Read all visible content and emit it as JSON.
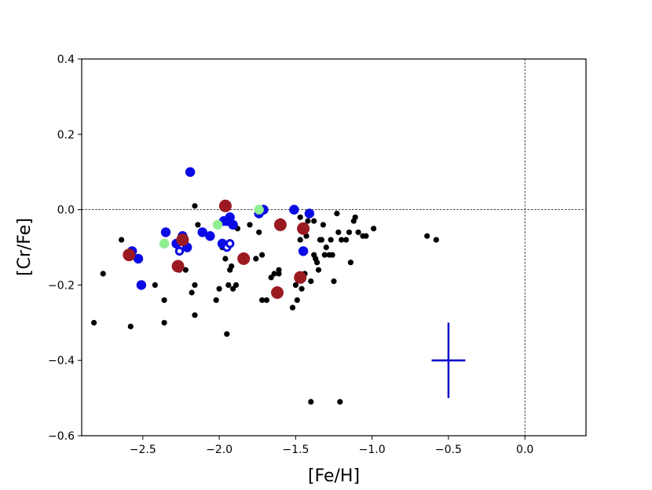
{
  "chart_data": {
    "type": "scatter",
    "xlabel": "[Fe/H]",
    "ylabel": "[Cr/Fe]",
    "xlim": [
      -2.9,
      0.4
    ],
    "ylim": [
      -0.6,
      0.4
    ],
    "x_ticks": [
      -2.5,
      -2.0,
      -1.5,
      -1.0,
      -0.5,
      0.0
    ],
    "x_tick_labels": [
      "−2.5",
      "−2.0",
      "−1.5",
      "−1.0",
      "−0.5",
      "0.0"
    ],
    "y_ticks": [
      -0.6,
      -0.4,
      -0.2,
      0.0,
      0.2,
      0.4
    ],
    "y_tick_labels": [
      "−0.6",
      "−0.4",
      "−0.2",
      "0.0",
      "0.2",
      "0.4"
    ],
    "grid": false,
    "reference_lines": {
      "horizontal_y": 0.0,
      "vertical_x": 0.0,
      "style": "dashed"
    },
    "error_bar": {
      "x": -0.5,
      "y": -0.4,
      "x_err": 0.11,
      "y_err": 0.1,
      "color": "#0a0acc"
    },
    "series": [
      {
        "color": "#000000",
        "marker": "small-dot",
        "points": [
          [
            -2.82,
            -0.3
          ],
          [
            -2.76,
            -0.17
          ],
          [
            -2.64,
            -0.08
          ],
          [
            -2.58,
            -0.31
          ],
          [
            -2.52,
            -0.13
          ],
          [
            -2.42,
            -0.2
          ],
          [
            -2.36,
            -0.24
          ],
          [
            -2.36,
            -0.3
          ],
          [
            -2.26,
            -0.16
          ],
          [
            -2.22,
            -0.16
          ],
          [
            -2.18,
            -0.22
          ],
          [
            -2.16,
            -0.2
          ],
          [
            -2.16,
            -0.28
          ],
          [
            -2.14,
            -0.04
          ],
          [
            -2.16,
            0.01
          ],
          [
            -2.02,
            -0.24
          ],
          [
            -2.0,
            -0.21
          ],
          [
            -1.98,
            -0.1
          ],
          [
            -1.96,
            -0.13
          ],
          [
            -1.95,
            -0.33
          ],
          [
            -1.94,
            -0.2
          ],
          [
            -1.93,
            -0.16
          ],
          [
            -1.91,
            -0.21
          ],
          [
            -1.92,
            -0.15
          ],
          [
            -1.89,
            -0.2
          ],
          [
            -1.88,
            -0.05
          ],
          [
            -1.8,
            -0.04
          ],
          [
            -1.76,
            -0.13
          ],
          [
            -1.74,
            -0.06
          ],
          [
            -1.72,
            -0.12
          ],
          [
            -1.72,
            -0.24
          ],
          [
            -1.69,
            -0.24
          ],
          [
            -1.66,
            -0.18
          ],
          [
            -1.64,
            -0.17
          ],
          [
            -1.61,
            -0.16
          ],
          [
            -1.61,
            -0.17
          ],
          [
            -1.6,
            -0.03
          ],
          [
            -1.52,
            -0.26
          ],
          [
            -1.5,
            -0.2
          ],
          [
            -1.49,
            -0.24
          ],
          [
            -1.47,
            -0.08
          ],
          [
            -1.47,
            -0.02
          ],
          [
            -1.46,
            -0.21
          ],
          [
            -1.44,
            -0.17
          ],
          [
            -1.43,
            -0.07
          ],
          [
            -1.42,
            -0.03
          ],
          [
            -1.4,
            -0.19
          ],
          [
            -1.38,
            -0.12
          ],
          [
            -1.38,
            -0.03
          ],
          [
            -1.37,
            -0.13
          ],
          [
            -1.36,
            -0.14
          ],
          [
            -1.35,
            -0.16
          ],
          [
            -1.34,
            -0.08
          ],
          [
            -1.33,
            -0.08
          ],
          [
            -1.32,
            -0.04
          ],
          [
            -1.31,
            -0.12
          ],
          [
            -1.3,
            -0.1
          ],
          [
            -1.28,
            -0.12
          ],
          [
            -1.27,
            -0.08
          ],
          [
            -1.26,
            -0.12
          ],
          [
            -1.25,
            -0.19
          ],
          [
            -1.23,
            -0.01
          ],
          [
            -1.22,
            -0.06
          ],
          [
            -1.2,
            -0.08
          ],
          [
            -1.17,
            -0.08
          ],
          [
            -1.15,
            -0.06
          ],
          [
            -1.14,
            -0.14
          ],
          [
            -1.12,
            -0.03
          ],
          [
            -1.11,
            -0.02
          ],
          [
            -1.09,
            -0.06
          ],
          [
            -1.06,
            -0.07
          ],
          [
            -1.04,
            -0.07
          ],
          [
            -0.99,
            -0.05
          ],
          [
            -0.64,
            -0.07
          ],
          [
            -0.58,
            -0.08
          ],
          [
            -1.4,
            -0.51
          ],
          [
            -1.21,
            -0.51
          ]
        ]
      },
      {
        "color": "#0a0ae6",
        "marker": "circle",
        "points": [
          [
            -2.19,
            0.1
          ],
          [
            -2.57,
            -0.11
          ],
          [
            -2.53,
            -0.13
          ],
          [
            -2.51,
            -0.2
          ],
          [
            -2.35,
            -0.06
          ],
          [
            -2.28,
            -0.09
          ],
          [
            -2.24,
            -0.07
          ],
          [
            -2.21,
            -0.1
          ],
          [
            -2.11,
            -0.06
          ],
          [
            -2.06,
            -0.07
          ],
          [
            -1.98,
            -0.09
          ],
          [
            -1.97,
            -0.03
          ],
          [
            -1.95,
            -0.03
          ],
          [
            -1.93,
            -0.02
          ],
          [
            -1.91,
            -0.04
          ],
          [
            -1.74,
            -0.01
          ],
          [
            -1.71,
            -0.0
          ],
          [
            -1.51,
            0.0
          ],
          [
            -1.41,
            -0.01
          ],
          [
            -1.45,
            -0.11
          ]
        ]
      },
      {
        "color": "#0a0ae6",
        "marker": "ring",
        "points": [
          [
            -2.26,
            -0.11
          ],
          [
            -1.95,
            -0.1
          ],
          [
            -1.93,
            -0.09
          ]
        ]
      },
      {
        "color": "#90ee90",
        "marker": "circle",
        "points": [
          [
            -2.36,
            -0.09
          ],
          [
            -2.01,
            -0.04
          ],
          [
            -1.74,
            0.0
          ]
        ]
      },
      {
        "color": "#9b1a22",
        "marker": "circle-large",
        "points": [
          [
            -2.59,
            -0.12
          ],
          [
            -2.27,
            -0.15
          ],
          [
            -2.24,
            -0.08
          ],
          [
            -1.96,
            0.01
          ],
          [
            -1.84,
            -0.13
          ],
          [
            -1.62,
            -0.22
          ],
          [
            -1.6,
            -0.04
          ],
          [
            -1.47,
            -0.18
          ],
          [
            -1.45,
            -0.05
          ]
        ]
      }
    ]
  }
}
